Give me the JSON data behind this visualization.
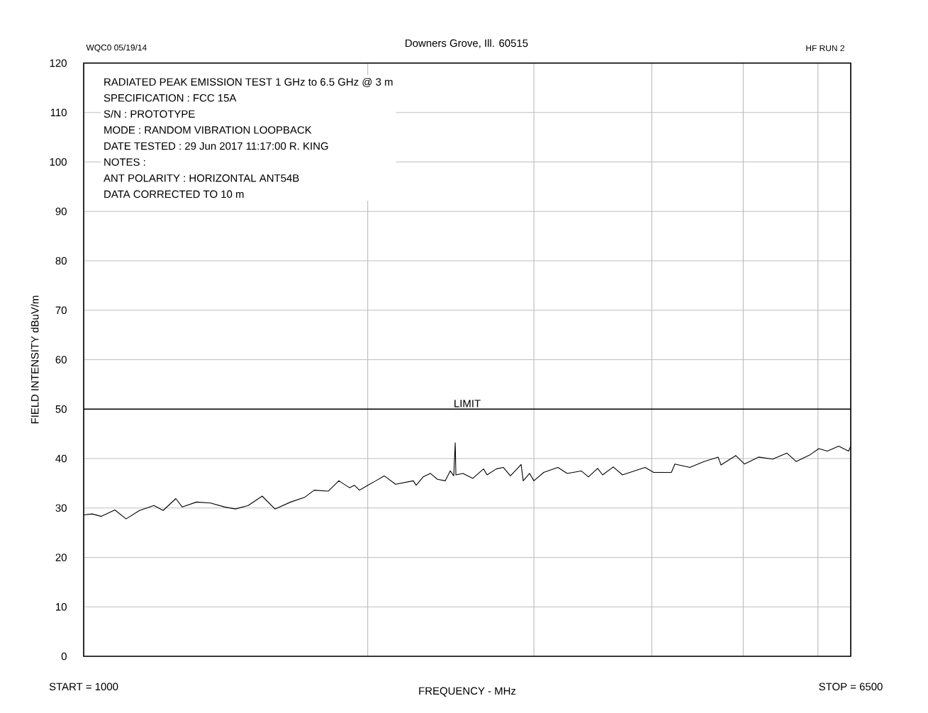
{
  "chart_data": {
    "type": "line",
    "xlabel": "FREQUENCY - MHz",
    "ylabel": "FIELD INTENSITY   dBuV/m",
    "log": "x",
    "xlim": [
      1000,
      6500
    ],
    "xticks": [
      {
        "value": 1000,
        "label": "START = 1000"
      },
      {
        "value": 2000,
        "label": null
      },
      {
        "value": 3000,
        "label": null
      },
      {
        "value": 4000,
        "label": null
      },
      {
        "value": 5000,
        "label": null
      },
      {
        "value": 6000,
        "label": null
      },
      {
        "value": 6500,
        "label": "STOP = 6500"
      }
    ],
    "ylim": [
      0,
      120
    ],
    "yticks": [
      0,
      10,
      20,
      30,
      40,
      50,
      60,
      70,
      80,
      90,
      100,
      110,
      120
    ],
    "grid": true,
    "marker": "none",
    "line_style": "solid",
    "ref_lines": [
      {
        "axis": "y",
        "value": 50,
        "label": "LIMIT",
        "color": "#000000"
      }
    ],
    "annotations": [
      "WQC0  05/19/14",
      "Downers Grove, Ill. 60515",
      "HF  RUN 2",
      "RADIATED PEAK EMISSION TEST 1 GHz to 6.5 GHz @ 3 m",
      "SPECIFICATION : FCC 15A",
      "S/N : PROTOTYPE",
      "MODE : RANDOM VIBRATION LOOPBACK",
      "DATE TESTED : 29 Jun 2017 11:17:00  R. KING",
      "NOTES :",
      "ANT POLARITY : HORIZONTAL  ANT54B",
      "DATA CORRECTED TO 10 m"
    ],
    "series": [
      {
        "color": "#000000",
        "x": [
          1000,
          1021,
          1044,
          1079,
          1109,
          1146,
          1187,
          1214,
          1252,
          1272,
          1317,
          1363,
          1411,
          1448,
          1494,
          1546,
          1595,
          1657,
          1716,
          1755,
          1816,
          1864,
          1913,
          1936,
          1960,
          2000,
          2040,
          2082,
          2141,
          2235,
          2251,
          2290,
          2330,
          2371,
          2416,
          2446,
          2467,
          2476,
          2480,
          2523,
          2585,
          2653,
          2676,
          2737,
          2785,
          2833,
          2908,
          2923,
          2969,
          3000,
          3073,
          3181,
          3254,
          3368,
          3427,
          3505,
          3548,
          3641,
          3724,
          3936,
          4018,
          4196,
          4232,
          4389,
          4543,
          4703,
          4736,
          4911,
          5014,
          5191,
          5373,
          5563,
          5689,
          5889,
          6013,
          6139,
          6311,
          6466,
          6500
        ],
        "values": [
          28.6,
          28.8,
          28.3,
          29.6,
          27.8,
          29.5,
          30.5,
          29.5,
          31.9,
          30.2,
          31.2,
          31.0,
          30.2,
          29.8,
          30.5,
          32.4,
          29.8,
          31.2,
          32.2,
          33.6,
          33.4,
          35.5,
          34.1,
          34.6,
          33.6,
          34.6,
          35.5,
          36.5,
          34.8,
          35.5,
          34.6,
          36.3,
          37.0,
          35.8,
          35.5,
          37.5,
          36.5,
          43.2,
          36.7,
          37.0,
          36.0,
          37.9,
          36.7,
          37.9,
          38.2,
          36.5,
          38.8,
          35.5,
          37.0,
          35.5,
          37.2,
          38.2,
          37.0,
          37.5,
          36.3,
          38.0,
          36.7,
          38.3,
          36.7,
          38.2,
          37.2,
          37.2,
          38.9,
          38.2,
          39.4,
          40.3,
          38.7,
          40.6,
          38.9,
          40.3,
          39.9,
          41.1,
          39.4,
          40.8,
          42.0,
          41.5,
          42.5,
          41.5,
          42.5
        ]
      }
    ]
  }
}
